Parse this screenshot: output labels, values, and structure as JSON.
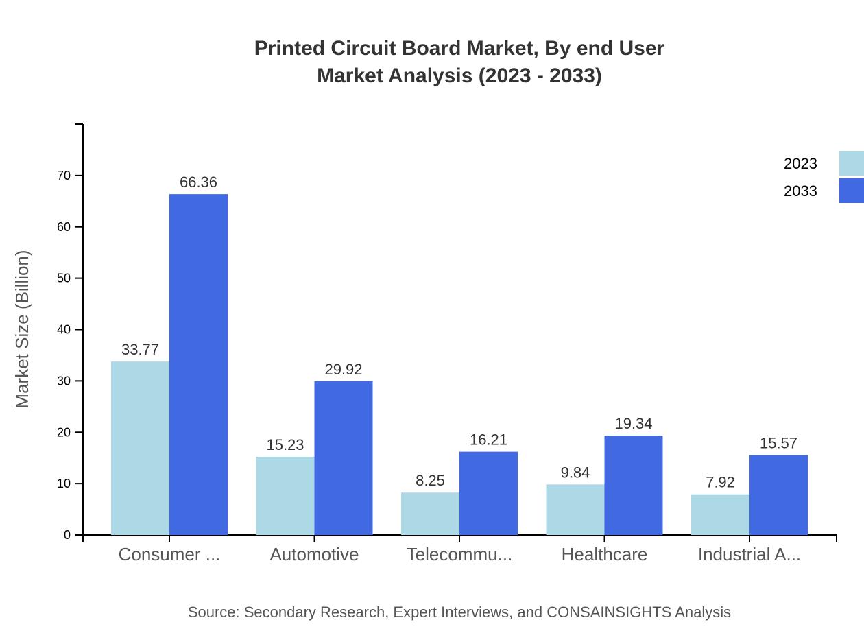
{
  "chart_data": {
    "type": "bar",
    "title": [
      "Printed Circuit Board Market, By end User",
      "Market Analysis (2023 - 2033)"
    ],
    "xlabel": "",
    "ylabel": "Market Size (Billion)",
    "ylim": [
      0,
      80
    ],
    "yticks": [
      0,
      10,
      20,
      30,
      40,
      50,
      60,
      70
    ],
    "categories": [
      "Consumer ...",
      "Automotive",
      "Telecommu...",
      "Healthcare",
      "Industrial A..."
    ],
    "series": [
      {
        "name": "2023",
        "color": "#ADD8E6",
        "values": [
          33.77,
          15.23,
          8.25,
          9.84,
          7.92
        ]
      },
      {
        "name": "2033",
        "color": "#4169E1",
        "values": [
          66.36,
          29.92,
          16.21,
          19.34,
          15.57
        ]
      }
    ],
    "grid": false,
    "legend": "top-right",
    "source": "Source: Secondary Research, Expert Interviews, and CONSAINSIGHTS Analysis"
  }
}
